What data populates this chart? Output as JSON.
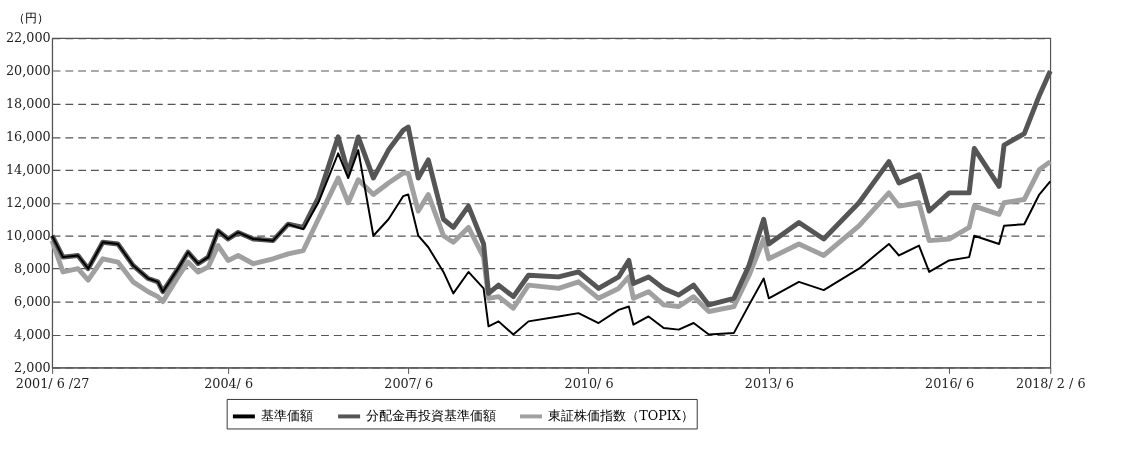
{
  "chart_data": {
    "type": "line",
    "ylabel": "（円）",
    "x": [
      "2001-06-27",
      "2001-09",
      "2001-12",
      "2002-02",
      "2002-05",
      "2002-08",
      "2002-11",
      "2003-02",
      "2003-04",
      "2003-05",
      "2003-08",
      "2003-10",
      "2003-12",
      "2004-02",
      "2004-04",
      "2004-06",
      "2004-08",
      "2004-11",
      "2005-03",
      "2005-06",
      "2005-09",
      "2005-12",
      "2006-04",
      "2006-06",
      "2006-08",
      "2006-11",
      "2007-02",
      "2007-05",
      "2007-06",
      "2007-08",
      "2007-10",
      "2008-01",
      "2008-03",
      "2008-06",
      "2008-09",
      "2008-10",
      "2008-12",
      "2009-03",
      "2009-06",
      "2009-12",
      "2010-04",
      "2010-08",
      "2010-12",
      "2011-02",
      "2011-03",
      "2011-06",
      "2011-09",
      "2011-12",
      "2012-03",
      "2012-06",
      "2012-11",
      "2013-02",
      "2013-05",
      "2013-06",
      "2013-12",
      "2014-05",
      "2014-12",
      "2015-06",
      "2015-08",
      "2015-12",
      "2016-02",
      "2016-06",
      "2016-10",
      "2016-11",
      "2017-04",
      "2017-05",
      "2017-09",
      "2017-12",
      "2018-02-06"
    ],
    "series": [
      {
        "name": "基準価額",
        "color": "#000000",
        "values": [
          10000,
          8700,
          8800,
          8000,
          9600,
          9500,
          8200,
          7400,
          7200,
          6600,
          8000,
          9000,
          8300,
          8700,
          10300,
          9800,
          10200,
          9800,
          9700,
          10700,
          10400,
          12000,
          15000,
          13500,
          15200,
          10000,
          11000,
          12400,
          12500,
          10000,
          9300,
          7800,
          6500,
          7800,
          6800,
          4500,
          4800,
          4000,
          4800,
          5100,
          5300,
          4700,
          5500,
          5700,
          4600,
          5100,
          4400,
          4300,
          4700,
          4000,
          4100,
          5800,
          7400,
          6200,
          7200,
          6700,
          8000,
          9500,
          8800,
          9400,
          7800,
          8500,
          8700,
          10000,
          9500,
          10600,
          10700,
          12500,
          13300
        ]
      },
      {
        "name": "分配金再投資基準価額",
        "color": "#555555",
        "values": [
          10000,
          8700,
          8800,
          8000,
          9600,
          9500,
          8200,
          7400,
          7200,
          6600,
          8000,
          9000,
          8300,
          8700,
          10300,
          9800,
          10200,
          9800,
          9700,
          10700,
          10500,
          12300,
          16000,
          13800,
          16000,
          13500,
          15200,
          16400,
          16600,
          13500,
          14600,
          11000,
          10500,
          11800,
          9500,
          6500,
          7000,
          6300,
          7600,
          7500,
          7800,
          6800,
          7500,
          8500,
          7100,
          7500,
          6800,
          6400,
          7000,
          5800,
          6200,
          8200,
          11000,
          9500,
          10800,
          9800,
          12000,
          14500,
          13200,
          13700,
          11500,
          12600,
          12600,
          15300,
          13000,
          15500,
          16200,
          18500,
          20000
        ]
      },
      {
        "name": "東証株価指数（TOPIX）",
        "color": "#a0a0a0",
        "values": [
          9700,
          7800,
          8000,
          7300,
          8600,
          8400,
          7200,
          6600,
          6300,
          6000,
          7500,
          8400,
          7800,
          8100,
          9400,
          8500,
          8800,
          8300,
          8600,
          8900,
          9100,
          11000,
          13500,
          12000,
          13400,
          12500,
          13200,
          13800,
          13800,
          11500,
          12500,
          10000,
          9600,
          10500,
          8700,
          6200,
          6300,
          5600,
          7000,
          6800,
          7200,
          6200,
          6800,
          7500,
          6200,
          6600,
          5800,
          5700,
          6300,
          5400,
          5700,
          7600,
          9800,
          8600,
          9500,
          8800,
          10600,
          12600,
          11800,
          12000,
          9700,
          9800,
          10500,
          11800,
          11300,
          12000,
          12200,
          14000,
          14500
        ]
      }
    ],
    "xlim": [
      "2001-06-27",
      "2018-02-06"
    ],
    "xticks": [
      {
        "value": "2001-06-27",
        "label": "2001/ 6 /27"
      },
      {
        "value": "2004-06-01",
        "label": "2004/ 6"
      },
      {
        "value": "2007-06-01",
        "label": "2007/ 6"
      },
      {
        "value": "2010-06-01",
        "label": "2010/ 6"
      },
      {
        "value": "2013-06-01",
        "label": "2013/ 6"
      },
      {
        "value": "2016-06-01",
        "label": "2016/ 6"
      },
      {
        "value": "2018-02-06",
        "label": "2018/ 2 / 6"
      }
    ],
    "ylim": [
      2000,
      22000
    ],
    "yticks": [
      {
        "value": 2000,
        "label": "2,000"
      },
      {
        "value": 4000,
        "label": "4,000"
      },
      {
        "value": 6000,
        "label": "6,000"
      },
      {
        "value": 8000,
        "label": "8,000"
      },
      {
        "value": 10000,
        "label": "10,000"
      },
      {
        "value": 12000,
        "label": "12,000"
      },
      {
        "value": 14000,
        "label": "14,000"
      },
      {
        "value": 16000,
        "label": "16,000"
      },
      {
        "value": 18000,
        "label": "18,000"
      },
      {
        "value": 20000,
        "label": "20,000"
      },
      {
        "value": 22000,
        "label": "22,000"
      }
    ],
    "grid": "y",
    "line_style": "solid",
    "marker": "none",
    "legend": "bottom"
  }
}
